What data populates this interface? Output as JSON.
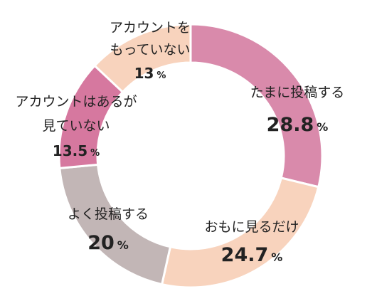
{
  "chart_data": {
    "type": "pie",
    "style": "donut",
    "title": "",
    "legend": "none",
    "slices": [
      {
        "label": "たまに投稿する",
        "label_lines": [
          "たまに投稿する"
        ],
        "value": 28.8,
        "value_text": "28.8",
        "unit": "%",
        "color": "#d98aab"
      },
      {
        "label": "おもに見るだけ",
        "label_lines": [
          "おもに見るだけ"
        ],
        "value": 24.7,
        "value_text": "24.7",
        "unit": "%",
        "color": "#f8d3bd"
      },
      {
        "label": "よく投稿する",
        "label_lines": [
          "よく投稿する"
        ],
        "value": 20,
        "value_text": "20",
        "unit": "%",
        "color": "#c2b6b6"
      },
      {
        "label": "アカウントはあるが見ていない",
        "label_lines": [
          "アカウントはあるが",
          "見ていない"
        ],
        "value": 13.5,
        "value_text": "13.5",
        "unit": "%",
        "color": "#d6789f"
      },
      {
        "label": "アカウントをもっていない",
        "label_lines": [
          "アカウントを",
          "もっていない"
        ],
        "value": 13,
        "value_text": "13",
        "unit": "%",
        "color": "#f8d3bd"
      }
    ]
  }
}
